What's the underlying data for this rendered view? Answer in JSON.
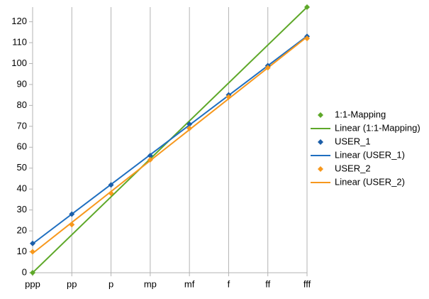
{
  "chart_data": {
    "type": "line",
    "categories": [
      "ppp",
      "pp",
      "p",
      "mp",
      "mf",
      "f",
      "ff",
      "fff"
    ],
    "series": [
      {
        "name": "1:1-Mapping",
        "trendline_label": "Linear (1:1-Mapping)",
        "color": "#5ea829",
        "values": [
          0,
          null,
          null,
          null,
          null,
          null,
          null,
          127
        ]
      },
      {
        "name": "USER_1",
        "trendline_label": "Linear (USER_1)",
        "color": "#1c5ea8",
        "trendline_color": "#1f6fc0",
        "values": [
          14,
          28,
          42,
          56,
          71,
          85,
          99,
          113
        ]
      },
      {
        "name": "USER_2",
        "trendline_label": "Linear (USER_2)",
        "color": "#f7981d",
        "values": [
          10,
          23,
          38,
          54,
          69,
          84,
          98,
          112
        ]
      }
    ],
    "ylim": [
      0,
      127
    ],
    "yticks": [
      0,
      10,
      20,
      30,
      40,
      50,
      60,
      70,
      80,
      90,
      100,
      110,
      120
    ],
    "grid": "x",
    "trendline": "linear",
    "legend": "right"
  }
}
